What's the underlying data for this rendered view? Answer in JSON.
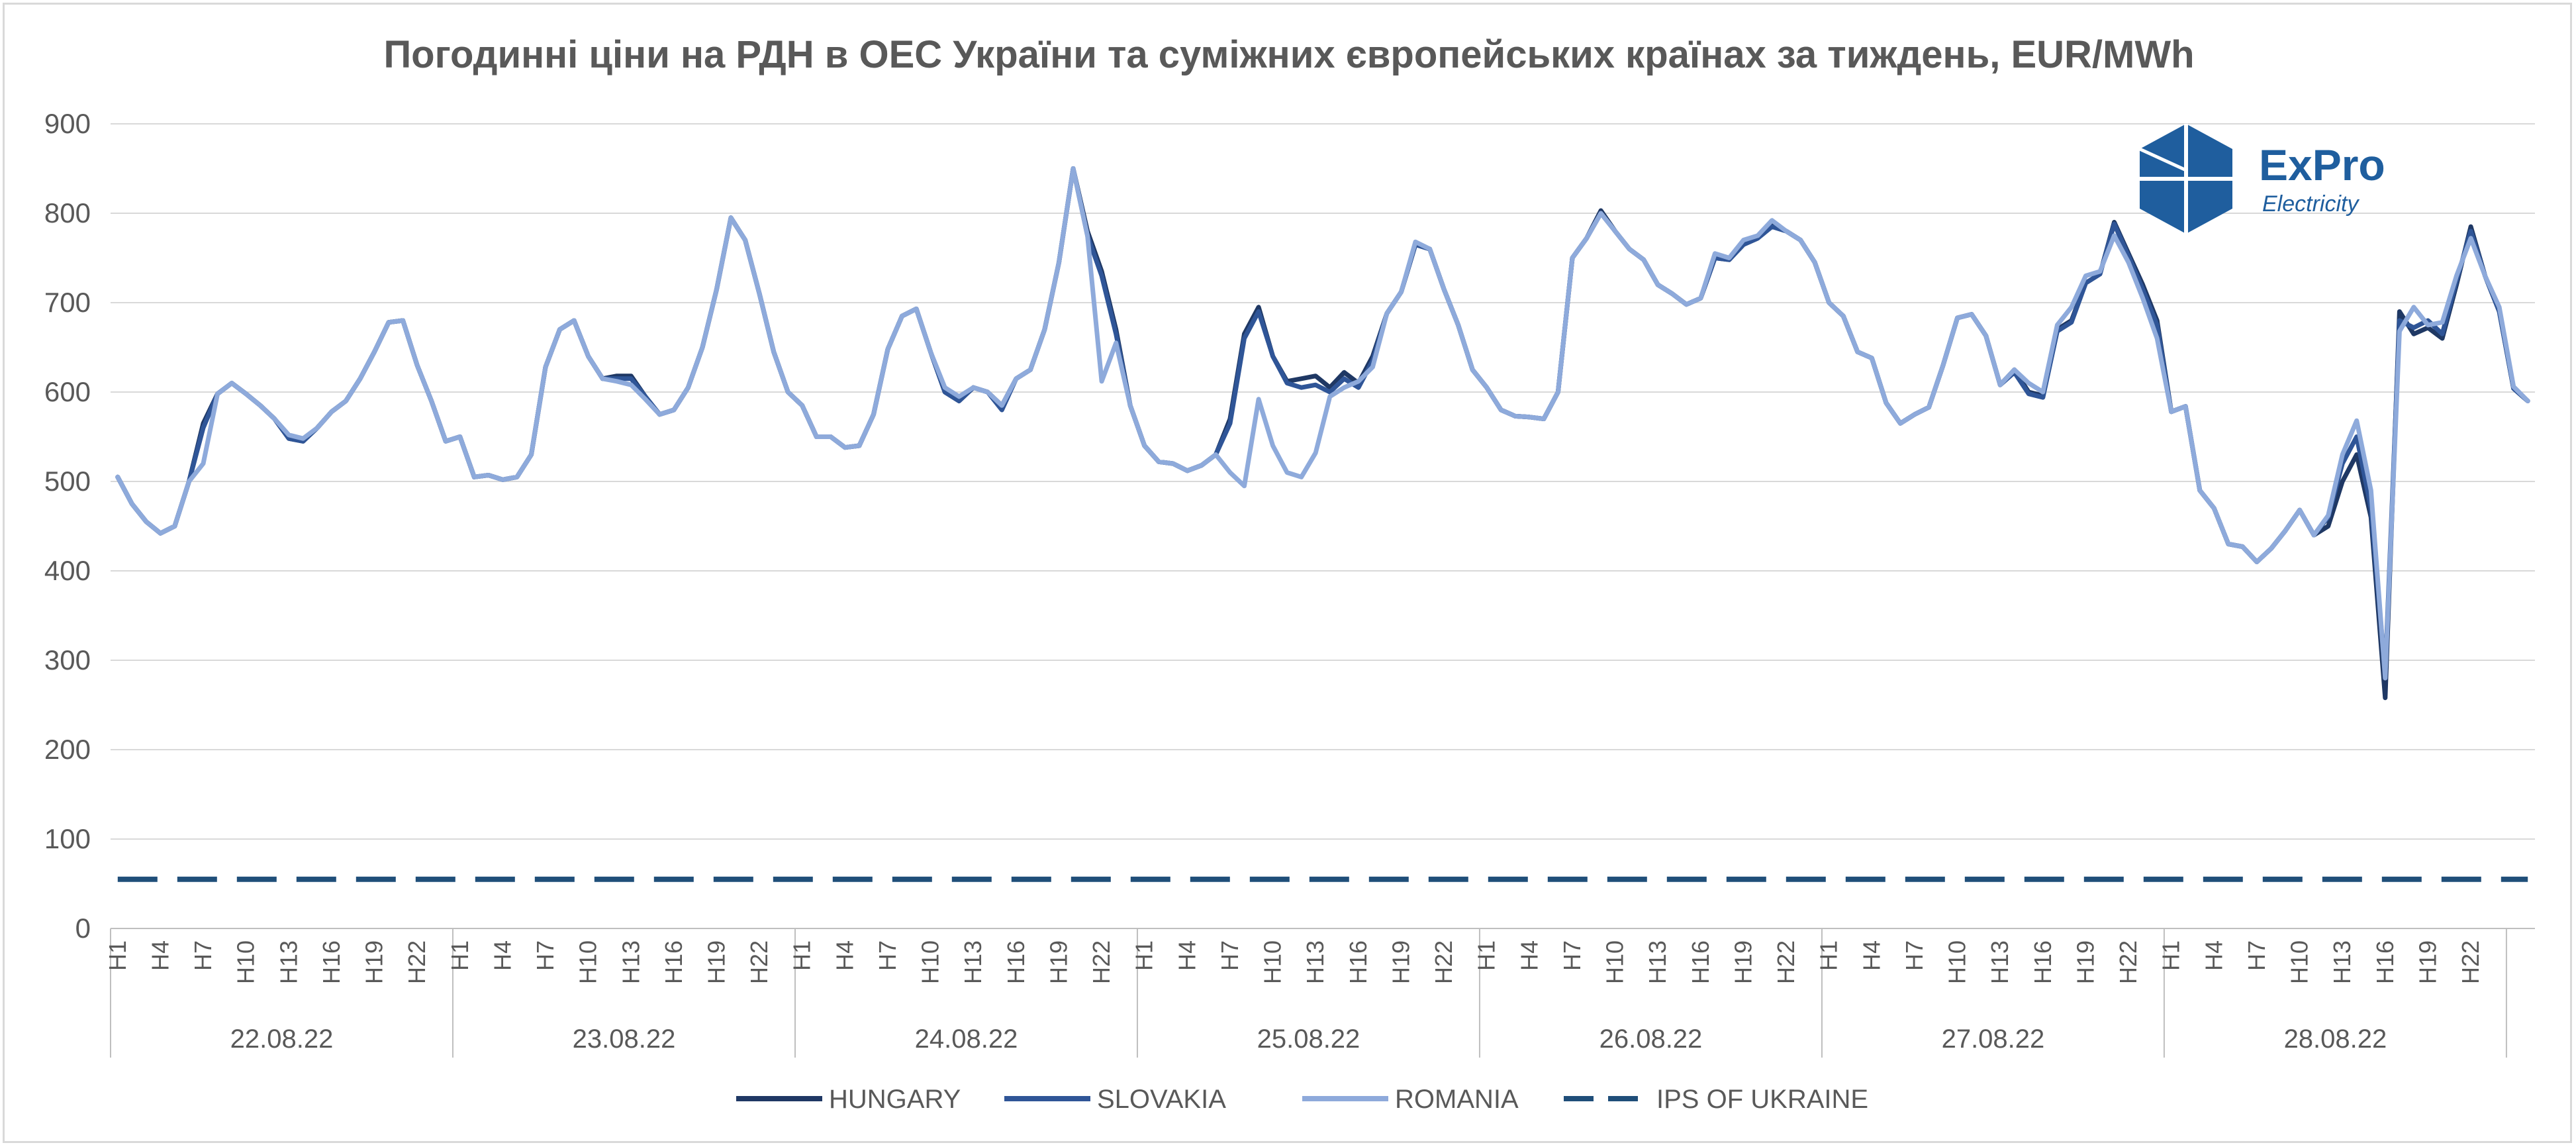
{
  "chart_data": {
    "type": "line",
    "title": "Погодинні ціни на РДН в ОЕС України та суміжних європейських країнах за тиждень, EUR/MWh",
    "ylim": [
      0,
      900
    ],
    "yticks": [
      0,
      100,
      200,
      300,
      400,
      500,
      600,
      700,
      800,
      900
    ],
    "hour_labels": [
      "H1",
      "H4",
      "H7",
      "H10",
      "H13",
      "H16",
      "H19",
      "H22"
    ],
    "days": [
      "22.08.22",
      "23.08.22",
      "24.08.22",
      "25.08.22",
      "26.08.22",
      "27.08.22",
      "28.08.22"
    ],
    "grid": true,
    "legend_position": "bottom",
    "series": [
      {
        "name": "HUNGARY",
        "color": "#1f3864",
        "dash": "solid",
        "values": [
          505,
          475,
          455,
          442,
          450,
          500,
          565,
          598,
          610,
          598,
          585,
          570,
          548,
          545,
          560,
          578,
          590,
          615,
          645,
          678,
          680,
          630,
          590,
          545,
          550,
          505,
          507,
          502,
          505,
          530,
          628,
          670,
          680,
          640,
          615,
          618,
          618,
          595,
          575,
          580,
          605,
          650,
          715,
          795,
          770,
          710,
          645,
          600,
          585,
          550,
          550,
          538,
          540,
          575,
          648,
          685,
          693,
          645,
          600,
          590,
          605,
          600,
          585,
          615,
          625,
          670,
          745,
          850,
          780,
          735,
          670,
          585,
          540,
          522,
          520,
          512,
          518,
          530,
          570,
          665,
          695,
          640,
          612,
          615,
          618,
          605,
          622,
          610,
          640,
          688,
          712,
          765,
          760,
          715,
          675,
          625,
          605,
          580,
          573,
          572,
          570,
          600,
          750,
          772,
          803,
          780,
          760,
          748,
          720,
          710,
          698,
          705,
          750,
          748,
          765,
          772,
          788,
          780,
          770,
          745,
          700,
          685,
          645,
          638,
          588,
          565,
          575,
          583,
          630,
          683,
          687,
          663,
          608,
          625,
          600,
          596,
          670,
          680,
          722,
          732,
          790,
          755,
          720,
          680,
          578,
          584,
          490,
          470,
          430,
          427,
          410,
          425,
          445,
          468,
          440,
          450,
          500,
          530,
          460,
          258,
          690,
          665,
          672,
          660,
          720,
          785,
          730,
          690,
          604,
          590
        ]
      },
      {
        "name": "SLOVAKIA",
        "color": "#2f5597",
        "dash": "solid",
        "values": [
          505,
          475,
          455,
          442,
          450,
          500,
          560,
          598,
          610,
          598,
          585,
          570,
          548,
          545,
          560,
          578,
          590,
          615,
          645,
          678,
          680,
          630,
          590,
          545,
          550,
          505,
          507,
          502,
          505,
          530,
          628,
          670,
          680,
          640,
          615,
          615,
          615,
          595,
          575,
          580,
          605,
          650,
          715,
          795,
          770,
          710,
          645,
          600,
          585,
          550,
          550,
          538,
          540,
          575,
          648,
          685,
          693,
          645,
          600,
          590,
          605,
          600,
          580,
          615,
          625,
          670,
          745,
          850,
          775,
          730,
          665,
          585,
          540,
          522,
          520,
          512,
          518,
          530,
          565,
          660,
          690,
          640,
          610,
          605,
          608,
          600,
          615,
          605,
          635,
          688,
          712,
          765,
          760,
          715,
          675,
          625,
          605,
          580,
          573,
          572,
          570,
          600,
          750,
          772,
          800,
          780,
          760,
          748,
          720,
          710,
          698,
          705,
          750,
          748,
          765,
          772,
          785,
          780,
          770,
          745,
          700,
          685,
          645,
          638,
          588,
          565,
          575,
          583,
          630,
          683,
          687,
          663,
          608,
          622,
          598,
          594,
          668,
          678,
          722,
          732,
          788,
          752,
          715,
          675,
          578,
          584,
          490,
          470,
          430,
          427,
          410,
          425,
          445,
          468,
          440,
          460,
          520,
          550,
          470,
          285,
          680,
          672,
          680,
          665,
          725,
          780,
          730,
          690,
          604,
          590
        ]
      },
      {
        "name": "ROMANIA",
        "color": "#8eaadb",
        "dash": "solid",
        "values": [
          505,
          475,
          455,
          442,
          450,
          500,
          520,
          598,
          610,
          598,
          585,
          570,
          552,
          548,
          560,
          578,
          590,
          615,
          645,
          678,
          680,
          630,
          590,
          545,
          550,
          505,
          507,
          502,
          505,
          530,
          628,
          670,
          680,
          640,
          615,
          612,
          608,
          592,
          575,
          580,
          605,
          650,
          715,
          795,
          770,
          710,
          645,
          600,
          585,
          550,
          550,
          538,
          540,
          575,
          648,
          685,
          693,
          645,
          605,
          595,
          605,
          600,
          585,
          615,
          625,
          670,
          745,
          850,
          775,
          612,
          655,
          585,
          540,
          522,
          520,
          512,
          518,
          530,
          510,
          495,
          592,
          540,
          510,
          505,
          532,
          595,
          605,
          612,
          628,
          688,
          712,
          768,
          760,
          715,
          675,
          625,
          605,
          580,
          573,
          572,
          570,
          600,
          750,
          772,
          800,
          780,
          760,
          748,
          720,
          710,
          698,
          705,
          755,
          750,
          770,
          775,
          792,
          780,
          770,
          745,
          700,
          685,
          645,
          638,
          588,
          565,
          575,
          583,
          630,
          683,
          687,
          663,
          608,
          625,
          610,
          600,
          675,
          695,
          730,
          735,
          775,
          745,
          705,
          660,
          578,
          584,
          490,
          470,
          430,
          427,
          410,
          425,
          445,
          468,
          440,
          462,
          530,
          568,
          490,
          280,
          668,
          695,
          675,
          678,
          730,
          772,
          730,
          695,
          606,
          590
        ]
      },
      {
        "name": "IPS OF UKRAINE",
        "color": "#1f4e79",
        "dash": "dashed",
        "values": [
          55,
          55,
          55,
          55,
          55,
          55,
          55,
          55,
          55,
          55,
          55,
          55,
          55,
          55,
          55,
          55,
          55,
          55,
          55,
          55,
          55,
          55,
          55,
          55,
          55,
          55,
          55,
          55,
          55,
          55,
          55,
          55,
          55,
          55,
          55,
          55,
          55,
          55,
          55,
          55,
          55,
          55,
          55,
          55,
          55,
          55,
          55,
          55,
          55,
          55,
          55,
          55,
          55,
          55,
          55,
          55,
          55,
          55,
          55,
          55,
          55,
          55,
          55,
          55,
          55,
          55,
          55,
          55,
          55,
          55,
          55,
          55,
          55,
          55,
          55,
          55,
          55,
          55,
          55,
          55,
          55,
          55,
          55,
          55,
          55,
          55,
          55,
          55,
          55,
          55,
          55,
          55,
          55,
          55,
          55,
          55,
          55,
          55,
          55,
          55,
          55,
          55,
          55,
          55,
          55,
          55,
          55,
          55,
          55,
          55,
          55,
          55,
          55,
          55,
          55,
          55,
          55,
          55,
          55,
          55,
          55,
          55,
          55,
          55,
          55,
          55,
          55,
          55,
          55,
          55,
          55,
          55,
          55,
          55,
          55,
          55,
          55,
          55,
          55,
          55,
          55,
          55,
          55,
          55,
          55,
          55,
          55,
          55,
          55,
          55,
          55,
          55,
          55,
          55,
          55,
          55,
          55,
          55,
          55,
          55,
          55,
          55,
          55,
          55,
          55,
          55,
          55,
          55,
          55,
          55
        ]
      }
    ]
  },
  "logo": {
    "name": "ExPro",
    "sub": "Electricity"
  }
}
